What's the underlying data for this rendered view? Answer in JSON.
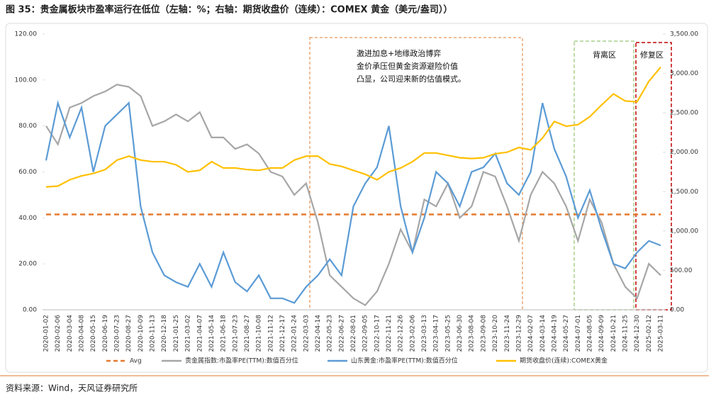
{
  "chart_data": {
    "type": "line",
    "title": "图 35：贵金属板块市盈率运行在低位（左轴：%；右轴：期货收盘价（连续）：COMEX 黄金（美元/盎司））",
    "source": "资料来源：Wind，天风证券研究所",
    "annotations": [
      "激进加息+地缘政治博弈",
      "金价承压但黄金资源避险价值",
      "凸显，公司迎来新的估值模式。",
      "背离区",
      "修复区"
    ],
    "categories": [
      "2020-01-02",
      "2020-02-06",
      "2020-03-04",
      "2020-04-08",
      "2020-05-15",
      "2020-06-19",
      "2020-07-23",
      "2020-08-27",
      "2020-10-09",
      "2020-11-13",
      "2020-12-18",
      "2021-01-25",
      "2021-03-02",
      "2021-04-07",
      "2021-05-14",
      "2021-06-18",
      "2021-07-23",
      "2021-08-27",
      "2021-10-08",
      "2021-11-12",
      "2021-12-17",
      "2022-01-24",
      "2022-03-03",
      "2022-04-14",
      "2022-05-23",
      "2022-06-27",
      "2022-08-01",
      "2022-09-05",
      "2022-10-17",
      "2022-11-21",
      "2022-12-26",
      "2023-02-06",
      "2023-03-13",
      "2023-04-17",
      "2023-05-25",
      "2023-06-30",
      "2023-08-04",
      "2023-09-08",
      "2023-10-20",
      "2023-11-24",
      "2023-12-29",
      "2024-02-07",
      "2024-03-14",
      "2024-04-19",
      "2024-05-27",
      "2024-07-01",
      "2024-08-05",
      "2024-09-09",
      "2024-10-21",
      "2024-11-25",
      "2024-12-30",
      "2025-02-12",
      "2025-03-11"
    ],
    "series": [
      {
        "name": "Avg",
        "color": "#e57a2e",
        "dashed": true,
        "value": 41.5
      },
      {
        "name": "贵金属指数:市盈率PE(TTM):数值百分位",
        "color": "#a6a6a6",
        "values": [
          80,
          72,
          88,
          90,
          93,
          95,
          98,
          97,
          93,
          80,
          82,
          85,
          82,
          86,
          75,
          75,
          70,
          72,
          68,
          60,
          58,
          50,
          55,
          38,
          15,
          10,
          5,
          2,
          8,
          20,
          35,
          25,
          48,
          45,
          55,
          40,
          45,
          60,
          58,
          45,
          30,
          50,
          60,
          55,
          45,
          30,
          48,
          38,
          20,
          10,
          5,
          20,
          15
        ]
      },
      {
        "name": "山东黄金:市盈率PE(TTM):数值百分位",
        "color": "#5b9bd5",
        "values": [
          65,
          90,
          75,
          88,
          60,
          80,
          85,
          90,
          45,
          25,
          15,
          12,
          10,
          20,
          10,
          25,
          12,
          8,
          15,
          5,
          5,
          3,
          10,
          15,
          22,
          15,
          45,
          55,
          62,
          80,
          45,
          25,
          40,
          60,
          55,
          45,
          60,
          62,
          68,
          55,
          50,
          60,
          90,
          70,
          58,
          40,
          52,
          35,
          20,
          18,
          25,
          30,
          28
        ]
      },
      {
        "name": "期货收盘价(连续):COMEX黄金",
        "color": "#ffc000",
        "axis": "y2",
        "values": [
          1560,
          1570,
          1650,
          1700,
          1730,
          1780,
          1900,
          1950,
          1900,
          1880,
          1880,
          1840,
          1750,
          1770,
          1880,
          1800,
          1800,
          1780,
          1770,
          1800,
          1800,
          1900,
          1950,
          1950,
          1850,
          1820,
          1770,
          1720,
          1650,
          1750,
          1800,
          1880,
          1990,
          1990,
          1960,
          1930,
          1920,
          1930,
          1980,
          2000,
          2060,
          2030,
          2180,
          2390,
          2330,
          2350,
          2450,
          2600,
          2740,
          2650,
          2640,
          2900,
          3080
        ]
      }
    ],
    "ylim": [
      0,
      120
    ],
    "yticks": [
      {
        "value": 0,
        "label": "0.00"
      },
      {
        "value": 20,
        "label": "20.00"
      },
      {
        "value": 40,
        "label": "40.00"
      },
      {
        "value": 60,
        "label": "60.00"
      },
      {
        "value": 80,
        "label": "80.00"
      },
      {
        "value": 100,
        "label": "100.00"
      },
      {
        "value": 120,
        "label": "120.00"
      }
    ],
    "y2lim": [
      0,
      3500
    ],
    "y2ticks": [
      {
        "value": 0,
        "label": "0.00"
      },
      {
        "value": 500,
        "label": "500.00"
      },
      {
        "value": 1000,
        "label": "1,000.00"
      },
      {
        "value": 1500,
        "label": "1,500.00"
      },
      {
        "value": 2000,
        "label": "2,000.00"
      },
      {
        "value": 2500,
        "label": "2,500.00"
      },
      {
        "value": 3000,
        "label": "3,000.00"
      },
      {
        "value": 3500,
        "label": "3,500.00"
      }
    ]
  }
}
